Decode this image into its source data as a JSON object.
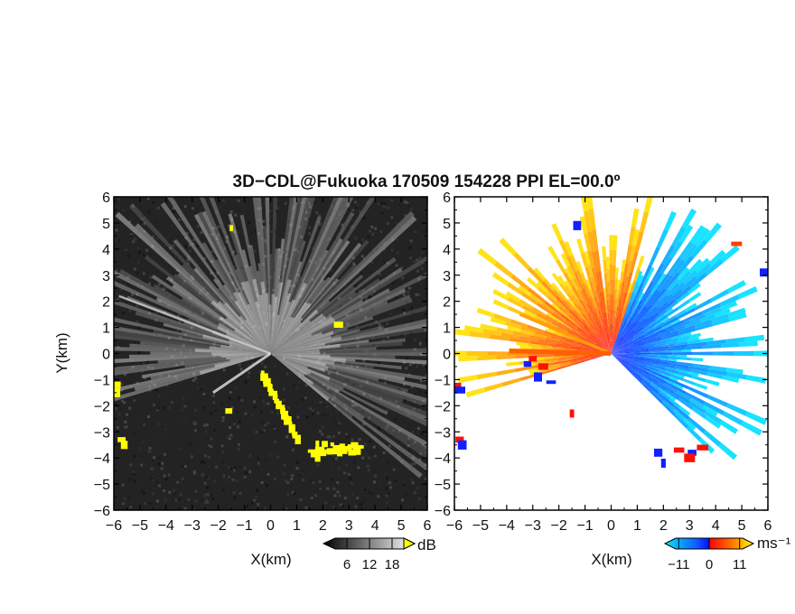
{
  "figure": {
    "title": "3D−CDL@Fukuoka 170509 154228 PPI EL=00.0º"
  },
  "chart_data": [
    {
      "type": "heatmap",
      "variable": "signal intensity",
      "xlabel": "X(km)",
      "ylabel": "Y(km)",
      "xlim": [
        -6,
        6
      ],
      "ylim": [
        -6,
        6
      ],
      "xticks": [
        "−6",
        "−5",
        "−4",
        "−3",
        "−2",
        "−1",
        "0",
        "1",
        "2",
        "3",
        "4",
        "5",
        "6"
      ],
      "yticks": [
        "6",
        "5",
        "4",
        "3",
        "2",
        "1",
        "0",
        "−1",
        "−2",
        "−3",
        "−4",
        "−5",
        "−6"
      ],
      "colorbar": {
        "unit": "dB",
        "range": [
          0,
          24
        ],
        "tick_labels": [
          "6",
          "12",
          "18"
        ],
        "tick_values": [
          6,
          12,
          18
        ],
        "colors": [
          "#000000",
          "#ffffff"
        ],
        "overflow_color": "#ffff00"
      },
      "strong_echo_color": "#ffff00"
    },
    {
      "type": "heatmap",
      "variable": "radial velocity",
      "xlabel": "X(km)",
      "xlim": [
        -6,
        6
      ],
      "ylim": [
        -6,
        6
      ],
      "xticks": [
        "−6",
        "−5",
        "−4",
        "−3",
        "−2",
        "−1",
        "0",
        "1",
        "2",
        "3",
        "4",
        "5",
        "6"
      ],
      "yticks": [
        "6",
        "5",
        "4",
        "3",
        "2",
        "1",
        "0",
        "−1",
        "−2",
        "−3",
        "−4",
        "−5",
        "−6"
      ],
      "colorbar": {
        "unit": "ms⁻¹",
        "range": [
          -16,
          16
        ],
        "tick_labels": [
          "−11",
          "0",
          "11"
        ],
        "tick_values": [
          -11,
          0,
          11
        ],
        "colors": [
          "#00e0ff",
          "#0010ff",
          "#ff0000",
          "#ffff00"
        ]
      },
      "approaching_colors": [
        "#00e0ff",
        "#0020ff"
      ],
      "receding_colors": [
        "#ff1000",
        "#ffe000"
      ]
    }
  ]
}
